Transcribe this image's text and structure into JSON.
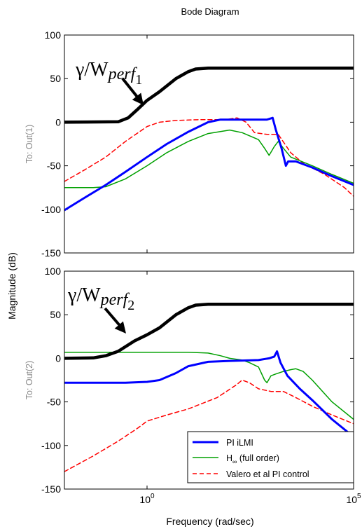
{
  "chart_data": {
    "type": "line",
    "title": "Bode Diagram",
    "xlabel": "Frequency  (rad/sec)",
    "ylabel": "Magnitude (dB)",
    "x_scale": "log",
    "xlim": [
      0.01,
      100000
    ],
    "x_ticks": [
      {
        "value": 1,
        "base": "10",
        "exp": "0"
      },
      {
        "value": 100000,
        "base": "10",
        "exp": "5"
      }
    ],
    "legend": {
      "placement": "bottom-right (lower panel)",
      "entries": [
        {
          "label": "PI iLMI",
          "color": "#0000ff",
          "style": "solid-thick"
        },
        {
          "label_main": "H",
          "label_sub": "∞",
          "label_rest": " (full order)",
          "color": "#00a000",
          "style": "solid"
        },
        {
          "label": "Valero et al PI control",
          "color": "#ff0000",
          "style": "dashed"
        }
      ]
    },
    "panels": [
      {
        "channel_label": "To: Out(1)",
        "ylim": [
          -150,
          100
        ],
        "y_ticks": [
          "100",
          "50",
          "0",
          "-50",
          "-100",
          "-150"
        ],
        "annotation": {
          "gamma": "γ/W",
          "sub": "perf",
          "subsub": "1"
        },
        "series": [
          {
            "key": "weight",
            "color": "#000000",
            "width": 4.5,
            "dash": "",
            "points": [
              [
                0.01,
                0
              ],
              [
                0.2,
                0.5
              ],
              [
                0.35,
                5
              ],
              [
                0.6,
                15
              ],
              [
                1,
                25
              ],
              [
                2,
                35
              ],
              [
                5,
                50
              ],
              [
                10,
                58
              ],
              [
                15,
                61
              ],
              [
                30,
                62
              ],
              [
                100000,
                62
              ]
            ]
          },
          {
            "key": "pi_ilmi",
            "color": "#0000ff",
            "width": 3,
            "dash": "",
            "points": [
              [
                0.01,
                -101
              ],
              [
                0.03,
                -87
              ],
              [
                0.1,
                -72
              ],
              [
                0.3,
                -57
              ],
              [
                1,
                -40
              ],
              [
                3,
                -25
              ],
              [
                10,
                -11
              ],
              [
                30,
                0
              ],
              [
                60,
                3
              ],
              [
                300,
                3
              ],
              [
                800,
                3
              ],
              [
                1100,
                5
              ],
              [
                1300,
                -8
              ],
              [
                1800,
                -30
              ],
              [
                2300,
                -50
              ],
              [
                2600,
                -45
              ],
              [
                4000,
                -45
              ],
              [
                10000,
                -52
              ],
              [
                30000,
                -62
              ],
              [
                100000,
                -72
              ]
            ]
          },
          {
            "key": "hinf",
            "color": "#00a000",
            "width": 1.5,
            "dash": "",
            "points": [
              [
                0.01,
                -75
              ],
              [
                0.05,
                -75
              ],
              [
                0.1,
                -74
              ],
              [
                0.3,
                -65
              ],
              [
                1,
                -50
              ],
              [
                3,
                -35
              ],
              [
                10,
                -22
              ],
              [
                30,
                -13
              ],
              [
                100,
                -9
              ],
              [
                200,
                -12
              ],
              [
                500,
                -20
              ],
              [
                700,
                -30
              ],
              [
                900,
                -38
              ],
              [
                1200,
                -28
              ],
              [
                1500,
                -22
              ],
              [
                2000,
                -30
              ],
              [
                3000,
                -40
              ],
              [
                10000,
                -50
              ],
              [
                30000,
                -60
              ],
              [
                100000,
                -70
              ]
            ]
          },
          {
            "key": "valero",
            "color": "#ff0000",
            "width": 1.5,
            "dash": "6,4",
            "points": [
              [
                0.01,
                -68
              ],
              [
                0.03,
                -55
              ],
              [
                0.1,
                -40
              ],
              [
                0.3,
                -22
              ],
              [
                1,
                -5
              ],
              [
                2,
                0
              ],
              [
                5,
                2
              ],
              [
                20,
                3
              ],
              [
                80,
                3
              ],
              [
                150,
                5
              ],
              [
                250,
                0
              ],
              [
                400,
                -12
              ],
              [
                800,
                -14
              ],
              [
                1500,
                -14
              ],
              [
                3000,
                -35
              ],
              [
                6000,
                -47
              ],
              [
                20000,
                -60
              ],
              [
                60000,
                -75
              ],
              [
                100000,
                -85
              ]
            ]
          }
        ]
      },
      {
        "channel_label": "To: Out(2)",
        "ylim": [
          -150,
          100
        ],
        "y_ticks": [
          "100",
          "50",
          "0",
          "-50",
          "-100",
          "-150"
        ],
        "annotation": {
          "gamma": "γ/W",
          "sub": "perf",
          "subsub": "2"
        },
        "series": [
          {
            "key": "weight",
            "color": "#000000",
            "width": 4.5,
            "dash": "",
            "points": [
              [
                0.01,
                0
              ],
              [
                0.05,
                0.5
              ],
              [
                0.1,
                3
              ],
              [
                0.2,
                8
              ],
              [
                0.5,
                20
              ],
              [
                1,
                27
              ],
              [
                2,
                35
              ],
              [
                5,
                50
              ],
              [
                10,
                58
              ],
              [
                15,
                61
              ],
              [
                30,
                62
              ],
              [
                100000,
                62
              ]
            ]
          },
          {
            "key": "pi_ilmi",
            "color": "#0000ff",
            "width": 3,
            "dash": "",
            "points": [
              [
                0.01,
                -28
              ],
              [
                0.3,
                -28
              ],
              [
                1,
                -27
              ],
              [
                2,
                -25
              ],
              [
                5,
                -17
              ],
              [
                10,
                -9
              ],
              [
                30,
                -4
              ],
              [
                100,
                -3
              ],
              [
                500,
                -2
              ],
              [
                900,
                0
              ],
              [
                1200,
                2
              ],
              [
                1400,
                8
              ],
              [
                1700,
                -5
              ],
              [
                2500,
                -20
              ],
              [
                5000,
                -35
              ],
              [
                10000,
                -48
              ],
              [
                30000,
                -70
              ],
              [
                100000,
                -90
              ]
            ]
          },
          {
            "key": "hinf",
            "color": "#00a000",
            "width": 1.5,
            "dash": "",
            "points": [
              [
                0.01,
                7
              ],
              [
                10,
                7
              ],
              [
                30,
                6
              ],
              [
                60,
                3
              ],
              [
                100,
                0
              ],
              [
                200,
                -2
              ],
              [
                300,
                -5
              ],
              [
                500,
                -10
              ],
              [
                700,
                -25
              ],
              [
                800,
                -28
              ],
              [
                1000,
                -20
              ],
              [
                1300,
                -18
              ],
              [
                2000,
                -15
              ],
              [
                3000,
                -13
              ],
              [
                4000,
                -12
              ],
              [
                6000,
                -15
              ],
              [
                10000,
                -25
              ],
              [
                30000,
                -50
              ],
              [
                100000,
                -70
              ]
            ]
          },
          {
            "key": "valero",
            "color": "#ff0000",
            "width": 1.5,
            "dash": "6,4",
            "points": [
              [
                0.01,
                -130
              ],
              [
                0.05,
                -112
              ],
              [
                0.2,
                -95
              ],
              [
                0.6,
                -80
              ],
              [
                1,
                -72
              ],
              [
                3,
                -65
              ],
              [
                10,
                -58
              ],
              [
                50,
                -45
              ],
              [
                150,
                -30
              ],
              [
                200,
                -25
              ],
              [
                300,
                -28
              ],
              [
                500,
                -35
              ],
              [
                1000,
                -38
              ],
              [
                2000,
                -38
              ],
              [
                4000,
                -45
              ],
              [
                10000,
                -55
              ],
              [
                30000,
                -65
              ],
              [
                100000,
                -75
              ]
            ]
          }
        ]
      }
    ]
  }
}
